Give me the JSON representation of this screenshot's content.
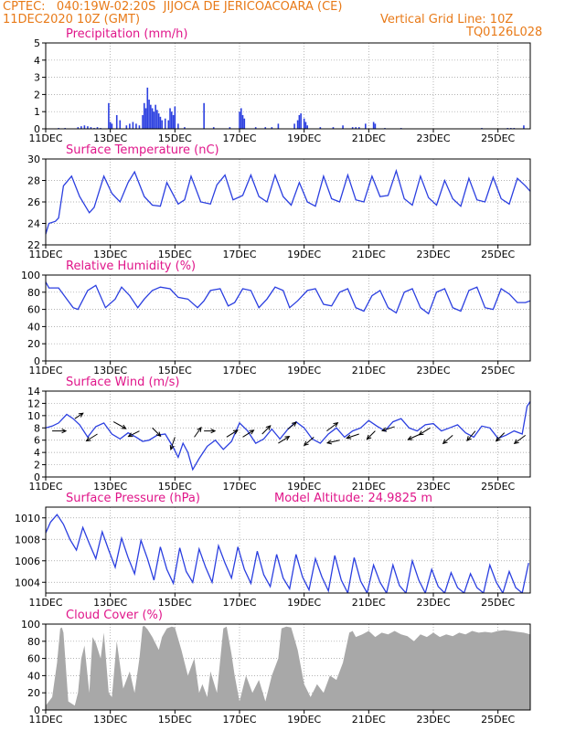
{
  "header": {
    "line1": "CPTEC:   040:19W-02:20S  JIJOCA DE JERICOACOARA (CE)",
    "line2": "11DEC2020 10Z (GMT)",
    "grid_note": "Vertical Grid Line: 10Z",
    "code": "TQ0126L028"
  },
  "colors": {
    "header": "#e87a18",
    "title": "#e0168a",
    "series": "#2b3fe0",
    "cloud": "#a8a8a8",
    "grid": "#9a9a9a"
  },
  "x_ticks": [
    "11DEC",
    "13DEC",
    "15DEC",
    "17DEC",
    "19DEC",
    "21DEC",
    "23DEC",
    "25DEC"
  ],
  "x_tick_days": [
    0,
    2,
    4,
    6,
    8,
    10,
    12,
    14
  ],
  "x_range_days": [
    0,
    15
  ],
  "chart_data": [
    {
      "type": "bar",
      "title": "Precipitation (mm/h)",
      "ylim": [
        0,
        5
      ],
      "yticks": [
        0,
        1,
        2,
        3,
        4,
        5
      ],
      "x": [
        0.4,
        0.6,
        1.0,
        1.1,
        1.2,
        1.3,
        1.4,
        1.5,
        1.6,
        1.7,
        1.95,
        2.0,
        2.05,
        2.2,
        2.3,
        2.5,
        2.6,
        2.7,
        2.8,
        2.9,
        3.0,
        3.05,
        3.1,
        3.15,
        3.2,
        3.25,
        3.3,
        3.35,
        3.4,
        3.45,
        3.5,
        3.55,
        3.6,
        3.7,
        3.8,
        3.85,
        3.9,
        3.95,
        4.0,
        4.1,
        4.3,
        4.9,
        5.2,
        5.7,
        6.0,
        6.05,
        6.1,
        6.15,
        6.5,
        6.8,
        7.0,
        7.2,
        7.7,
        7.8,
        7.85,
        7.9,
        8.0,
        8.05,
        8.1,
        8.5,
        8.9,
        9.2,
        9.5,
        9.6,
        9.7,
        9.9,
        10.15,
        10.2,
        10.5,
        11.0,
        13.5,
        14.3,
        14.4,
        14.5,
        14.8
      ],
      "y": [
        0.05,
        0.05,
        0.1,
        0.15,
        0.2,
        0.15,
        0.1,
        0.05,
        0.1,
        0.05,
        1.5,
        0.4,
        0.3,
        0.8,
        0.5,
        0.2,
        0.3,
        0.4,
        0.3,
        0.2,
        0.8,
        1.5,
        1.2,
        2.4,
        1.7,
        1.4,
        1.2,
        1.0,
        1.4,
        1.1,
        0.9,
        0.7,
        0.5,
        0.6,
        0.5,
        1.2,
        1.0,
        0.8,
        1.3,
        0.3,
        0.1,
        1.5,
        0.1,
        0.1,
        1.0,
        1.2,
        0.8,
        0.6,
        0.1,
        0.1,
        0.1,
        0.3,
        0.3,
        0.5,
        0.8,
        0.9,
        0.6,
        0.4,
        0.2,
        0.1,
        0.1,
        0.2,
        0.1,
        0.1,
        0.1,
        0.3,
        0.4,
        0.3,
        0.05,
        0.05,
        0.05,
        0.05,
        0.05,
        0.05,
        0.2
      ]
    },
    {
      "type": "line",
      "title": "Surface Temperature (nC)",
      "ylim": [
        22,
        30
      ],
      "yticks": [
        22,
        24,
        26,
        28,
        30
      ],
      "x": [
        0,
        0.1,
        0.3,
        0.4,
        0.55,
        0.8,
        1.05,
        1.35,
        1.5,
        1.8,
        2.05,
        2.3,
        2.55,
        2.75,
        3.05,
        3.3,
        3.55,
        3.75,
        4.1,
        4.3,
        4.5,
        4.8,
        5.1,
        5.3,
        5.55,
        5.8,
        6.1,
        6.35,
        6.6,
        6.85,
        7.1,
        7.35,
        7.6,
        7.85,
        8.1,
        8.35,
        8.6,
        8.85,
        9.1,
        9.35,
        9.6,
        9.85,
        10.1,
        10.35,
        10.6,
        10.85,
        11.1,
        11.35,
        11.6,
        11.85,
        12.1,
        12.35,
        12.6,
        12.85,
        13.1,
        13.35,
        13.6,
        13.85,
        14.1,
        14.35,
        14.6,
        14.85,
        15.0
      ],
      "y": [
        23.0,
        24.0,
        24.2,
        24.5,
        27.5,
        28.4,
        26.5,
        25.0,
        25.5,
        28.4,
        26.8,
        26.0,
        27.8,
        28.8,
        26.5,
        25.7,
        25.6,
        27.8,
        25.8,
        26.2,
        28.4,
        26.0,
        25.8,
        27.6,
        28.5,
        26.2,
        26.6,
        28.5,
        26.5,
        26.0,
        28.5,
        26.5,
        25.7,
        27.8,
        26.0,
        25.6,
        28.4,
        26.3,
        26.0,
        28.5,
        26.2,
        26.0,
        28.4,
        26.5,
        26.6,
        28.9,
        26.3,
        25.7,
        28.4,
        26.4,
        25.7,
        28.0,
        26.3,
        25.6,
        28.2,
        26.2,
        26.0,
        28.3,
        26.3,
        25.8,
        28.2,
        27.5,
        27.0
      ]
    },
    {
      "type": "line",
      "title": "Relative Humidity (%)",
      "ylim": [
        0,
        100
      ],
      "yticks": [
        0,
        20,
        40,
        60,
        80,
        100
      ],
      "x": [
        0,
        0.1,
        0.4,
        0.65,
        0.85,
        1.0,
        1.3,
        1.55,
        1.85,
        2.15,
        2.35,
        2.6,
        2.85,
        3.05,
        3.3,
        3.55,
        3.85,
        4.1,
        4.4,
        4.7,
        4.9,
        5.1,
        5.4,
        5.65,
        5.85,
        6.1,
        6.35,
        6.6,
        6.85,
        7.1,
        7.35,
        7.55,
        7.8,
        8.1,
        8.35,
        8.6,
        8.85,
        9.1,
        9.35,
        9.6,
        9.85,
        10.1,
        10.35,
        10.6,
        10.85,
        11.1,
        11.35,
        11.6,
        11.85,
        12.1,
        12.35,
        12.6,
        12.85,
        13.1,
        13.35,
        13.6,
        13.85,
        14.1,
        14.35,
        14.6,
        14.85,
        15.0
      ],
      "y": [
        92,
        85,
        85,
        72,
        62,
        60,
        82,
        88,
        62,
        72,
        86,
        76,
        62,
        72,
        82,
        86,
        84,
        74,
        72,
        62,
        70,
        82,
        84,
        64,
        68,
        84,
        82,
        62,
        72,
        86,
        82,
        62,
        70,
        82,
        84,
        66,
        64,
        80,
        84,
        62,
        58,
        76,
        82,
        62,
        56,
        80,
        84,
        62,
        55,
        80,
        84,
        62,
        58,
        82,
        86,
        62,
        60,
        84,
        78,
        68,
        68,
        70
      ]
    },
    {
      "type": "line",
      "title": "Surface Wind (m/s)",
      "ylim": [
        0,
        14
      ],
      "yticks": [
        0,
        2,
        4,
        6,
        8,
        10,
        12,
        14
      ],
      "x": [
        0,
        0.2,
        0.4,
        0.65,
        0.85,
        1.05,
        1.3,
        1.55,
        1.8,
        2.05,
        2.3,
        2.55,
        2.8,
        3.0,
        3.2,
        3.45,
        3.7,
        3.95,
        4.1,
        4.25,
        4.4,
        4.55,
        4.75,
        5.0,
        5.25,
        5.5,
        5.75,
        6.0,
        6.25,
        6.5,
        6.75,
        7.0,
        7.25,
        7.5,
        7.75,
        8.0,
        8.25,
        8.5,
        8.75,
        9.0,
        9.25,
        9.5,
        9.75,
        10.0,
        10.25,
        10.5,
        10.75,
        11.0,
        11.25,
        11.5,
        11.75,
        12.0,
        12.25,
        12.5,
        12.75,
        13.0,
        13.25,
        13.5,
        13.75,
        14.0,
        14.25,
        14.5,
        14.75,
        14.9,
        15.0
      ],
      "y": [
        8.0,
        8.3,
        8.8,
        10.2,
        9.5,
        8.5,
        6.5,
        8.2,
        8.8,
        7.0,
        6.2,
        7.2,
        6.5,
        5.8,
        6.0,
        6.8,
        7.0,
        4.8,
        3.2,
        5.5,
        4.0,
        1.2,
        3.0,
        5.0,
        6.0,
        4.5,
        5.8,
        8.8,
        7.5,
        5.5,
        6.2,
        7.8,
        6.2,
        7.8,
        9.0,
        8.0,
        6.2,
        5.5,
        7.0,
        8.0,
        6.5,
        7.5,
        8.0,
        9.2,
        8.3,
        7.5,
        9.0,
        9.5,
        8.0,
        7.5,
        8.5,
        8.7,
        7.5,
        8.0,
        8.5,
        7.2,
        6.5,
        8.3,
        8.0,
        6.3,
        6.8,
        7.5,
        7.0,
        11.5,
        12.3
      ]
    },
    {
      "type": "line",
      "title": "Surface Pressure (hPa)",
      "annotation": "Model Altitude: 24.9825  m",
      "ylim": [
        1003.0,
        1011.0
      ],
      "yticks": [
        1004,
        1006,
        1008,
        1010
      ],
      "x": [
        0,
        0.15,
        0.35,
        0.55,
        0.75,
        0.95,
        1.15,
        1.35,
        1.55,
        1.75,
        1.95,
        2.15,
        2.35,
        2.55,
        2.75,
        2.95,
        3.15,
        3.35,
        3.55,
        3.75,
        3.95,
        4.15,
        4.35,
        4.55,
        4.75,
        4.95,
        5.15,
        5.35,
        5.55,
        5.75,
        5.95,
        6.15,
        6.35,
        6.55,
        6.75,
        6.95,
        7.15,
        7.35,
        7.55,
        7.75,
        7.95,
        8.15,
        8.35,
        8.55,
        8.75,
        8.95,
        9.15,
        9.35,
        9.55,
        9.75,
        9.95,
        10.15,
        10.35,
        10.55,
        10.75,
        10.95,
        11.15,
        11.35,
        11.55,
        11.75,
        11.95,
        12.15,
        12.35,
        12.55,
        12.75,
        12.95,
        13.15,
        13.35,
        13.55,
        13.75,
        13.95,
        14.15,
        14.35,
        14.55,
        14.75,
        14.95
      ],
      "y": [
        1008.6,
        1009.6,
        1010.3,
        1009.4,
        1008.0,
        1007.0,
        1009.1,
        1007.6,
        1006.2,
        1008.7,
        1007.0,
        1005.4,
        1008.1,
        1006.3,
        1004.8,
        1007.9,
        1006.2,
        1004.2,
        1007.3,
        1005.2,
        1003.9,
        1007.2,
        1005.0,
        1004.0,
        1007.1,
        1005.4,
        1004.0,
        1007.4,
        1005.8,
        1004.4,
        1007.3,
        1005.2,
        1003.9,
        1006.9,
        1004.7,
        1003.6,
        1006.6,
        1004.4,
        1003.4,
        1006.6,
        1004.5,
        1003.3,
        1006.2,
        1004.5,
        1003.2,
        1006.5,
        1004.2,
        1003.0,
        1006.3,
        1004.1,
        1003.0,
        1005.6,
        1004.0,
        1003.0,
        1005.6,
        1003.7,
        1003.0,
        1006.0,
        1004.2,
        1003.0,
        1005.2,
        1003.6,
        1003.0,
        1004.9,
        1003.5,
        1003.0,
        1004.8,
        1003.5,
        1003.0,
        1005.6,
        1004.0,
        1003.0,
        1005.0,
        1003.5,
        1003.0,
        1005.8
      ]
    },
    {
      "type": "area",
      "title": "Cloud Cover (%)",
      "ylim": [
        0,
        100
      ],
      "yticks": [
        0,
        20,
        40,
        60,
        80,
        100
      ],
      "x": [
        0,
        0.2,
        0.35,
        0.45,
        0.5,
        0.55,
        0.7,
        0.9,
        1.0,
        1.1,
        1.2,
        1.35,
        1.45,
        1.55,
        1.7,
        1.8,
        1.95,
        2.05,
        2.2,
        2.4,
        2.6,
        2.75,
        2.9,
        3.0,
        3.05,
        3.15,
        3.3,
        3.5,
        3.6,
        3.75,
        3.9,
        4.0,
        4.2,
        4.4,
        4.6,
        4.75,
        4.85,
        5.0,
        5.1,
        5.3,
        5.5,
        5.6,
        5.75,
        5.85,
        6.0,
        6.2,
        6.4,
        6.6,
        6.8,
        7.0,
        7.2,
        7.3,
        7.45,
        7.6,
        7.8,
        8.0,
        8.2,
        8.4,
        8.6,
        8.8,
        9.0,
        9.2,
        9.4,
        9.5,
        9.6,
        9.8,
        10.0,
        10.2,
        10.4,
        10.6,
        10.8,
        11.0,
        11.2,
        11.4,
        11.6,
        11.8,
        12.0,
        12.2,
        12.4,
        12.6,
        12.8,
        13.0,
        13.2,
        13.4,
        13.6,
        13.8,
        14.0,
        14.2,
        14.4,
        14.6,
        14.8,
        15.0
      ],
      "y": [
        5,
        15,
        55,
        95,
        96,
        90,
        10,
        5,
        20,
        60,
        75,
        20,
        85,
        78,
        60,
        90,
        20,
        15,
        80,
        25,
        45,
        20,
        60,
        97,
        98,
        94,
        85,
        70,
        85,
        95,
        97,
        96,
        70,
        40,
        60,
        20,
        30,
        15,
        45,
        20,
        95,
        97,
        65,
        40,
        10,
        40,
        20,
        35,
        10,
        40,
        60,
        95,
        97,
        96,
        70,
        30,
        15,
        30,
        20,
        40,
        35,
        55,
        90,
        92,
        85,
        88,
        92,
        85,
        90,
        88,
        92,
        88,
        86,
        80,
        88,
        85,
        90,
        85,
        88,
        86,
        90,
        88,
        92,
        90,
        91,
        90,
        92,
        93,
        92,
        91,
        90,
        88
      ]
    }
  ],
  "wind_barbs": {
    "direction_note": "arrows point in direction of flow",
    "points": [
      {
        "x": 0.2,
        "y": 7.5,
        "u": 1.0,
        "v": 0.0
      },
      {
        "x": 0.9,
        "y": 9.5,
        "u": 0.6,
        "v": 0.4
      },
      {
        "x": 1.6,
        "y": 7.0,
        "u": -0.8,
        "v": -0.5
      },
      {
        "x": 2.1,
        "y": 9.0,
        "u": 0.9,
        "v": -0.5
      },
      {
        "x": 2.9,
        "y": 7.5,
        "u": -0.8,
        "v": -0.4
      },
      {
        "x": 3.3,
        "y": 8.0,
        "u": 0.6,
        "v": -0.6
      },
      {
        "x": 4.0,
        "y": 6.5,
        "u": -0.3,
        "v": -0.9
      },
      {
        "x": 4.6,
        "y": 6.5,
        "u": 0.5,
        "v": 0.7
      },
      {
        "x": 4.9,
        "y": 7.5,
        "u": 0.8,
        "v": 0.0
      },
      {
        "x": 5.6,
        "y": 6.5,
        "u": 0.8,
        "v": 0.5
      },
      {
        "x": 6.1,
        "y": 6.5,
        "u": 0.8,
        "v": 0.5
      },
      {
        "x": 6.7,
        "y": 7.0,
        "u": 0.6,
        "v": 0.6
      },
      {
        "x": 7.2,
        "y": 5.5,
        "u": 0.8,
        "v": 0.5
      },
      {
        "x": 7.5,
        "y": 7.8,
        "u": 0.6,
        "v": 0.5
      },
      {
        "x": 8.3,
        "y": 6.5,
        "u": -0.7,
        "v": -0.6
      },
      {
        "x": 8.7,
        "y": 7.5,
        "u": 0.8,
        "v": 0.6
      },
      {
        "x": 9.1,
        "y": 6.0,
        "u": -0.9,
        "v": -0.2
      },
      {
        "x": 9.7,
        "y": 7.0,
        "u": -0.9,
        "v": -0.3
      },
      {
        "x": 10.2,
        "y": 7.5,
        "u": -0.6,
        "v": -0.6
      },
      {
        "x": 10.8,
        "y": 8.2,
        "u": -0.9,
        "v": -0.3
      },
      {
        "x": 11.6,
        "y": 7.0,
        "u": -0.9,
        "v": -0.4
      },
      {
        "x": 11.9,
        "y": 8.0,
        "u": -0.8,
        "v": -0.5
      },
      {
        "x": 12.6,
        "y": 6.8,
        "u": -0.7,
        "v": -0.6
      },
      {
        "x": 13.3,
        "y": 7.5,
        "u": -0.6,
        "v": -0.7
      },
      {
        "x": 14.2,
        "y": 7.2,
        "u": -0.6,
        "v": -0.6
      },
      {
        "x": 14.85,
        "y": 6.8,
        "u": -0.8,
        "v": -0.6
      }
    ]
  }
}
